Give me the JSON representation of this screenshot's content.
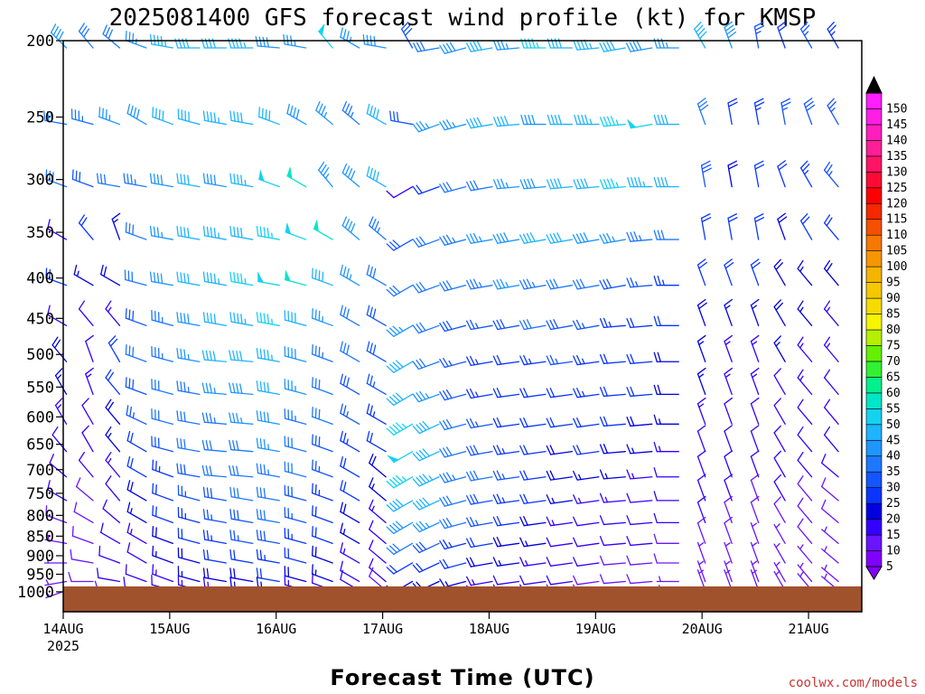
{
  "chart_data": {
    "type": "wind-barb-profile",
    "title": "2025081400 GFS forecast wind profile (kt) for KMSP",
    "xlabel": "Forecast Time (UTC)",
    "ylabel": "",
    "credit": "coolwx.com/models",
    "x_ticks": [
      "14AUG",
      "15AUG",
      "16AUG",
      "17AUG",
      "18AUG",
      "19AUG",
      "20AUG",
      "21AUG"
    ],
    "x_year": "2025",
    "xlim_days": [
      0,
      7.5
    ],
    "y_ticks": [
      200,
      250,
      300,
      350,
      400,
      450,
      500,
      550,
      600,
      650,
      700,
      750,
      800,
      850,
      900,
      950,
      1000
    ],
    "ylim_hPa": [
      200,
      1000
    ],
    "y_scale": "log-pressure",
    "levels_hPa": [
      200,
      250,
      300,
      350,
      400,
      450,
      500,
      550,
      600,
      650,
      700,
      750,
      800,
      850,
      900,
      950,
      975,
      1000
    ],
    "colorbar": {
      "position": "right",
      "labels": [
        "5",
        "10",
        "15",
        "20",
        "25",
        "30",
        "35",
        "40",
        "45",
        "50",
        "55",
        "60",
        "65",
        "70",
        "75",
        "80",
        "85",
        "90",
        "95",
        "100",
        "105",
        "110",
        "115",
        "120",
        "125",
        "130",
        "135",
        "140",
        "145",
        "150"
      ],
      "colors": [
        "#8000ff",
        "#6a14ff",
        "#3300ff",
        "#0000e0",
        "#0a35ff",
        "#1455ff",
        "#1e78ff",
        "#1e96ff",
        "#1eb4ff",
        "#14d2f0",
        "#00e6c8",
        "#00f08c",
        "#32f032",
        "#64f000",
        "#b4f000",
        "#f5f500",
        "#f5dc00",
        "#f5c800",
        "#f5b400",
        "#f59600",
        "#f57800",
        "#f55000",
        "#f52800",
        "#ff0000",
        "#ff0a37",
        "#ff1464",
        "#ff1e96",
        "#ff1ebe",
        "#ff1ee6",
        "#ff1eff"
      ]
    },
    "barb_sampling_hours": 6,
    "speed_kt_by_level": {
      "200": [
        38,
        32,
        30,
        35,
        44,
        42,
        40,
        43,
        38,
        36,
        48,
        35,
        38,
        28,
        30,
        38,
        40,
        36,
        45,
        42,
        44,
        40,
        38,
        36,
        40,
        38,
        25,
        22,
        26,
        24,
        22,
        15,
        20,
        38
      ],
      "250": [
        32,
        34,
        36,
        38,
        40,
        42,
        44,
        40,
        40,
        38,
        36,
        34,
        40,
        28,
        35,
        37,
        40,
        42,
        38,
        40,
        44,
        46,
        48,
        40,
        32,
        22,
        24,
        26,
        28,
        25,
        22,
        24,
        20,
        22
      ],
      "300": [
        30,
        28,
        30,
        34,
        38,
        40,
        38,
        44,
        48,
        50,
        35,
        38,
        40,
        10,
        20,
        30,
        32,
        35,
        38,
        40,
        42,
        45,
        44,
        40,
        28,
        18,
        20,
        22,
        24,
        25,
        22,
        20,
        18,
        18
      ],
      "350": [
        10,
        20,
        15,
        32,
        36,
        40,
        44,
        42,
        46,
        48,
        50,
        38,
        34,
        28,
        30,
        34,
        36,
        38,
        40,
        40,
        38,
        36,
        34,
        30,
        22,
        20,
        20,
        18,
        20,
        22,
        18,
        16,
        18,
        20
      ],
      "400": [
        20,
        15,
        18,
        32,
        38,
        42,
        44,
        46,
        48,
        50,
        42,
        36,
        32,
        30,
        30,
        32,
        34,
        36,
        34,
        32,
        30,
        28,
        26,
        24,
        22,
        20,
        20,
        18,
        16,
        18,
        16,
        18,
        20,
        20
      ],
      "450": [
        12,
        10,
        14,
        28,
        34,
        38,
        42,
        44,
        46,
        40,
        36,
        32,
        28,
        35,
        30,
        28,
        26,
        28,
        30,
        28,
        26,
        24,
        22,
        20,
        18,
        16,
        16,
        18,
        16,
        14,
        14,
        16,
        14,
        16
      ],
      "500": [
        18,
        12,
        20,
        30,
        34,
        36,
        40,
        42,
        44,
        38,
        34,
        30,
        28,
        40,
        32,
        26,
        24,
        22,
        24,
        26,
        24,
        22,
        20,
        18,
        16,
        14,
        14,
        16,
        14,
        14,
        12,
        14,
        14,
        16
      ],
      "550": [
        16,
        14,
        22,
        28,
        32,
        34,
        36,
        38,
        40,
        36,
        32,
        28,
        26,
        42,
        36,
        28,
        24,
        22,
        20,
        22,
        24,
        22,
        20,
        18,
        16,
        14,
        14,
        12,
        14,
        12,
        12,
        14,
        14,
        14
      ],
      "600": [
        14,
        12,
        18,
        26,
        30,
        32,
        34,
        36,
        38,
        34,
        30,
        26,
        24,
        46,
        40,
        30,
        26,
        22,
        20,
        20,
        22,
        20,
        18,
        16,
        14,
        12,
        12,
        12,
        12,
        12,
        10,
        12,
        12,
        12
      ],
      "650": [
        12,
        10,
        16,
        22,
        28,
        30,
        30,
        32,
        36,
        32,
        28,
        24,
        22,
        48,
        42,
        32,
        28,
        24,
        20,
        18,
        20,
        18,
        16,
        14,
        12,
        10,
        10,
        10,
        12,
        10,
        10,
        10,
        10,
        10
      ],
      "700": [
        12,
        10,
        14,
        20,
        24,
        28,
        30,
        32,
        34,
        30,
        26,
        22,
        18,
        46,
        44,
        34,
        30,
        26,
        22,
        18,
        16,
        16,
        14,
        12,
        12,
        10,
        10,
        10,
        10,
        10,
        8,
        8,
        10,
        10
      ],
      "750": [
        10,
        8,
        12,
        18,
        22,
        26,
        28,
        30,
        32,
        28,
        24,
        20,
        16,
        42,
        40,
        32,
        28,
        24,
        20,
        16,
        14,
        14,
        12,
        12,
        10,
        10,
        8,
        10,
        8,
        8,
        8,
        8,
        8,
        8
      ],
      "800": [
        8,
        8,
        10,
        16,
        20,
        24,
        26,
        28,
        30,
        26,
        22,
        18,
        14,
        38,
        36,
        30,
        26,
        22,
        18,
        14,
        12,
        12,
        10,
        10,
        10,
        8,
        8,
        8,
        8,
        8,
        6,
        8,
        8,
        8
      ],
      "850": [
        6,
        8,
        10,
        14,
        18,
        22,
        24,
        26,
        28,
        24,
        20,
        16,
        12,
        30,
        28,
        24,
        22,
        18,
        16,
        12,
        12,
        10,
        10,
        8,
        8,
        8,
        6,
        6,
        8,
        6,
        6,
        6,
        6,
        6
      ],
      "900": [
        6,
        8,
        10,
        12,
        16,
        18,
        20,
        22,
        24,
        20,
        18,
        14,
        10,
        22,
        22,
        20,
        18,
        16,
        14,
        10,
        10,
        8,
        8,
        8,
        6,
        6,
        6,
        6,
        6,
        6,
        6,
        6,
        6,
        6
      ],
      "950": [
        6,
        8,
        10,
        12,
        14,
        16,
        18,
        18,
        20,
        18,
        16,
        12,
        10,
        16,
        18,
        16,
        14,
        12,
        12,
        10,
        8,
        8,
        8,
        6,
        6,
        6,
        6,
        6,
        6,
        6,
        6,
        6,
        6,
        6
      ],
      "975": [
        6,
        6,
        8,
        10,
        12,
        14,
        14,
        16,
        16,
        14,
        12,
        10,
        8,
        12,
        14,
        12,
        12,
        10,
        10,
        8,
        8,
        6,
        6,
        6,
        6,
        6,
        6,
        6,
        6,
        6,
        6,
        6,
        6,
        6
      ]
    },
    "direction_deg_by_level": {
      "200": [
        315,
        320,
        310,
        290,
        280,
        270,
        270,
        270,
        275,
        280,
        320,
        300,
        280,
        330,
        260,
        255,
        260,
        265,
        270,
        270,
        265,
        260,
        260,
        270,
        330,
        340,
        350,
        340,
        330,
        330,
        330,
        340,
        350,
        320
      ],
      "250": [
        280,
        285,
        290,
        300,
        290,
        285,
        280,
        280,
        290,
        300,
        310,
        310,
        300,
        280,
        250,
        255,
        260,
        265,
        270,
        270,
        270,
        265,
        260,
        270,
        340,
        350,
        350,
        350,
        340,
        330,
        330,
        330,
        340,
        350
      ],
      "300": [
        290,
        290,
        280,
        280,
        280,
        280,
        280,
        280,
        290,
        300,
        320,
        310,
        300,
        240,
        250,
        255,
        260,
        265,
        265,
        265,
        265,
        265,
        270,
        270,
        350,
        350,
        350,
        340,
        330,
        320,
        320,
        330,
        340,
        350
      ],
      "350": [
        300,
        320,
        340,
        290,
        280,
        280,
        280,
        280,
        280,
        290,
        300,
        310,
        310,
        240,
        250,
        255,
        260,
        260,
        260,
        260,
        260,
        260,
        265,
        270,
        350,
        350,
        350,
        340,
        330,
        320,
        320,
        330,
        340,
        350
      ],
      "400": [
        290,
        300,
        300,
        285,
        280,
        280,
        280,
        280,
        280,
        285,
        290,
        300,
        300,
        240,
        250,
        255,
        260,
        260,
        260,
        260,
        260,
        260,
        265,
        270,
        340,
        340,
        340,
        330,
        320,
        320,
        320,
        330,
        340,
        350
      ],
      "450": [
        300,
        320,
        320,
        290,
        285,
        280,
        280,
        280,
        280,
        285,
        290,
        300,
        300,
        240,
        250,
        255,
        260,
        260,
        260,
        260,
        260,
        265,
        265,
        270,
        340,
        340,
        340,
        330,
        320,
        320,
        320,
        330,
        340,
        350
      ],
      "500": [
        320,
        340,
        330,
        290,
        285,
        280,
        275,
        275,
        280,
        285,
        290,
        300,
        300,
        240,
        250,
        255,
        260,
        262,
        262,
        262,
        262,
        265,
        265,
        270,
        340,
        340,
        340,
        330,
        320,
        320,
        320,
        330,
        340,
        350
      ],
      "550": [
        330,
        340,
        320,
        290,
        285,
        280,
        275,
        275,
        280,
        285,
        290,
        300,
        300,
        240,
        250,
        255,
        260,
        262,
        262,
        262,
        262,
        265,
        265,
        270,
        340,
        340,
        340,
        330,
        320,
        320,
        320,
        330,
        340,
        350
      ],
      "600": [
        330,
        330,
        320,
        295,
        285,
        280,
        275,
        275,
        280,
        285,
        290,
        300,
        300,
        240,
        245,
        255,
        260,
        262,
        262,
        262,
        262,
        265,
        265,
        270,
        340,
        340,
        340,
        330,
        320,
        320,
        320,
        330,
        340,
        350
      ],
      "650": [
        320,
        330,
        320,
        300,
        285,
        280,
        275,
        275,
        280,
        285,
        290,
        300,
        300,
        240,
        245,
        255,
        260,
        262,
        262,
        262,
        262,
        265,
        265,
        270,
        340,
        340,
        340,
        330,
        320,
        320,
        320,
        330,
        340,
        350
      ],
      "700": [
        310,
        320,
        320,
        300,
        290,
        280,
        275,
        275,
        280,
        285,
        290,
        300,
        310,
        240,
        245,
        255,
        260,
        262,
        262,
        262,
        262,
        265,
        265,
        270,
        340,
        340,
        340,
        330,
        320,
        310,
        310,
        320,
        330,
        340
      ],
      "750": [
        300,
        310,
        320,
        300,
        290,
        285,
        280,
        280,
        280,
        285,
        290,
        300,
        310,
        240,
        245,
        255,
        260,
        262,
        262,
        262,
        262,
        265,
        265,
        270,
        340,
        340,
        340,
        330,
        320,
        310,
        300,
        310,
        320,
        330
      ],
      "800": [
        290,
        300,
        310,
        300,
        290,
        285,
        280,
        280,
        280,
        285,
        290,
        300,
        310,
        240,
        245,
        255,
        260,
        262,
        262,
        262,
        262,
        265,
        265,
        270,
        340,
        340,
        340,
        330,
        320,
        310,
        300,
        300,
        310,
        320
      ],
      "850": [
        280,
        290,
        300,
        300,
        290,
        285,
        280,
        280,
        280,
        285,
        290,
        300,
        310,
        240,
        245,
        255,
        260,
        262,
        262,
        262,
        262,
        265,
        265,
        270,
        340,
        340,
        340,
        330,
        320,
        310,
        300,
        300,
        300,
        310
      ],
      "900": [
        270,
        280,
        290,
        300,
        290,
        285,
        280,
        280,
        280,
        285,
        290,
        300,
        310,
        240,
        245,
        255,
        260,
        262,
        262,
        262,
        262,
        265,
        265,
        270,
        340,
        340,
        340,
        330,
        320,
        310,
        300,
        290,
        290,
        300
      ],
      "950": [
        260,
        270,
        280,
        290,
        290,
        285,
        280,
        280,
        280,
        285,
        290,
        300,
        310,
        240,
        245,
        255,
        260,
        262,
        262,
        262,
        262,
        265,
        265,
        270,
        340,
        340,
        340,
        330,
        320,
        310,
        300,
        290,
        280,
        290
      ],
      "975": [
        250,
        260,
        270,
        280,
        285,
        285,
        280,
        280,
        280,
        285,
        290,
        300,
        310,
        240,
        245,
        255,
        260,
        262,
        262,
        262,
        262,
        265,
        265,
        270,
        340,
        340,
        340,
        330,
        320,
        310,
        300,
        290,
        280,
        280
      ]
    }
  },
  "colors": {
    "axis": "#000000",
    "ground": "#a0522d",
    "credit": "#cc3333"
  }
}
